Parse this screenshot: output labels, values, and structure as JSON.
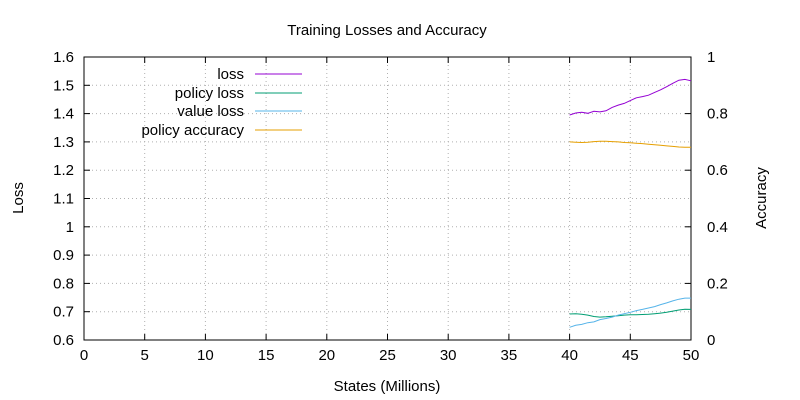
{
  "chart_data": {
    "type": "line",
    "title": "Training Losses and Accuracy",
    "xlabel": "States (Millions)",
    "ylabel": "Loss",
    "y2label": "Accuracy",
    "xlim": [
      0,
      50
    ],
    "ylim": [
      0.6,
      1.6
    ],
    "y2lim": [
      0,
      1
    ],
    "xticks": [
      "0",
      "5",
      "10",
      "15",
      "20",
      "25",
      "30",
      "35",
      "40",
      "45",
      "50"
    ],
    "yticks": [
      "0.6",
      "0.7",
      "0.8",
      "0.9",
      "1",
      "1.1",
      "1.2",
      "1.3",
      "1.4",
      "1.5",
      "1.6"
    ],
    "y2ticks": [
      "0",
      "0.2",
      "0.4",
      "0.6",
      "0.8",
      "1"
    ],
    "grid": true,
    "legend_position": "top-left",
    "series": [
      {
        "name": "loss",
        "axis": "left",
        "color": "#9400d3",
        "x": [
          40,
          40.5,
          41,
          41.5,
          42,
          42.5,
          43,
          43.5,
          44,
          44.5,
          45,
          45.5,
          46,
          46.5,
          47,
          47.5,
          48,
          48.5,
          49,
          49.5,
          50
        ],
        "y": [
          1.395,
          1.402,
          1.405,
          1.401,
          1.408,
          1.406,
          1.41,
          1.422,
          1.43,
          1.436,
          1.446,
          1.456,
          1.46,
          1.465,
          1.475,
          1.484,
          1.495,
          1.507,
          1.518,
          1.521,
          1.516
        ]
      },
      {
        "name": "policy loss",
        "axis": "left",
        "color": "#009e73",
        "x": [
          40,
          40.5,
          41,
          41.5,
          42,
          42.5,
          43,
          43.5,
          44,
          44.5,
          45,
          45.5,
          46,
          46.5,
          47,
          47.5,
          48,
          48.5,
          49,
          49.5,
          50
        ],
        "y": [
          0.692,
          0.693,
          0.691,
          0.688,
          0.683,
          0.681,
          0.682,
          0.684,
          0.686,
          0.688,
          0.689,
          0.689,
          0.69,
          0.691,
          0.693,
          0.695,
          0.698,
          0.702,
          0.706,
          0.709,
          0.708
        ]
      },
      {
        "name": "value loss",
        "axis": "left",
        "color": "#56b4e9",
        "x": [
          40,
          40.5,
          41,
          41.5,
          42,
          42.5,
          43,
          43.5,
          44,
          44.5,
          45,
          45.5,
          46,
          46.5,
          47,
          47.5,
          48,
          48.5,
          49,
          49.5,
          50
        ],
        "y": [
          0.645,
          0.652,
          0.655,
          0.661,
          0.664,
          0.672,
          0.676,
          0.681,
          0.688,
          0.693,
          0.698,
          0.704,
          0.708,
          0.713,
          0.718,
          0.725,
          0.731,
          0.738,
          0.744,
          0.748,
          0.748
        ]
      },
      {
        "name": "policy accuracy",
        "axis": "right",
        "color": "#e69f00",
        "x": [
          40,
          40.5,
          41,
          41.5,
          42,
          42.5,
          43,
          43.5,
          44,
          44.5,
          45,
          45.5,
          46,
          46.5,
          47,
          47.5,
          48,
          48.5,
          49,
          49.5,
          50
        ],
        "y": [
          0.7,
          0.699,
          0.698,
          0.699,
          0.701,
          0.702,
          0.702,
          0.701,
          0.7,
          0.698,
          0.697,
          0.695,
          0.694,
          0.692,
          0.69,
          0.688,
          0.686,
          0.684,
          0.682,
          0.681,
          0.681
        ]
      }
    ]
  }
}
